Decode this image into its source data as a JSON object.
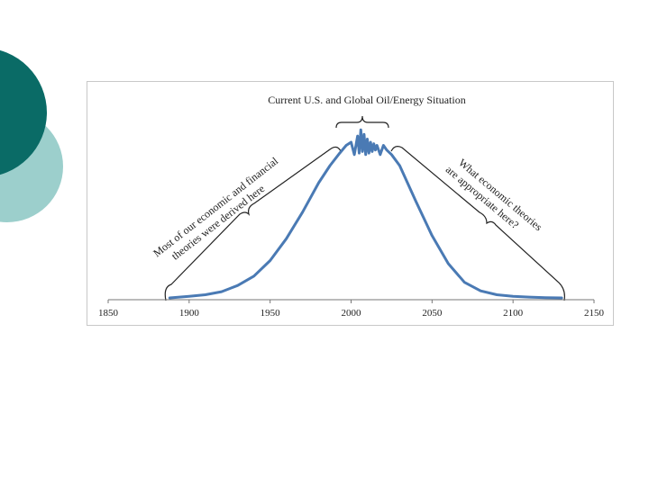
{
  "slide": {
    "decor_colors": [
      "#0a6b66",
      "#9ccfcc"
    ]
  },
  "chart_data": {
    "type": "line",
    "title": "Current U.S. and Global Oil/Energy Situation",
    "xlabel": "",
    "ylabel": "",
    "xlim": [
      1850,
      2150
    ],
    "x_ticks": [
      1850,
      1900,
      1950,
      2000,
      2050,
      2100,
      2150
    ],
    "ylim": [
      0,
      1
    ],
    "grid": false,
    "series": [
      {
        "color": "#4a7ab4",
        "x": [
          1888,
          1900,
          1910,
          1920,
          1930,
          1940,
          1950,
          1960,
          1970,
          1980,
          1987,
          1993,
          1997,
          2000,
          2002,
          2004,
          2005,
          2006,
          2007,
          2008,
          2009,
          2010,
          2011,
          2012,
          2013,
          2014,
          2015,
          2016,
          2018,
          2020,
          2022,
          2025,
          2030,
          2040,
          2050,
          2060,
          2070,
          2080,
          2090,
          2100,
          2110,
          2120,
          2130
        ],
        "y": [
          0.0,
          0.01,
          0.02,
          0.04,
          0.08,
          0.14,
          0.24,
          0.38,
          0.55,
          0.74,
          0.85,
          0.93,
          0.98,
          1.0,
          0.92,
          1.04,
          0.93,
          1.08,
          0.94,
          1.05,
          0.92,
          1.02,
          0.93,
          1.0,
          0.94,
          0.99,
          0.95,
          0.98,
          0.92,
          0.98,
          0.95,
          0.92,
          0.85,
          0.62,
          0.4,
          0.22,
          0.1,
          0.045,
          0.02,
          0.01,
          0.005,
          0.002,
          0.0
        ]
      }
    ],
    "annotations": [
      {
        "name": "left-note",
        "lines": [
          "Most of our economic and financial",
          "theories were derived here"
        ]
      },
      {
        "name": "right-note",
        "lines": [
          "What economic theories",
          "are appropriate here?"
        ]
      }
    ]
  }
}
